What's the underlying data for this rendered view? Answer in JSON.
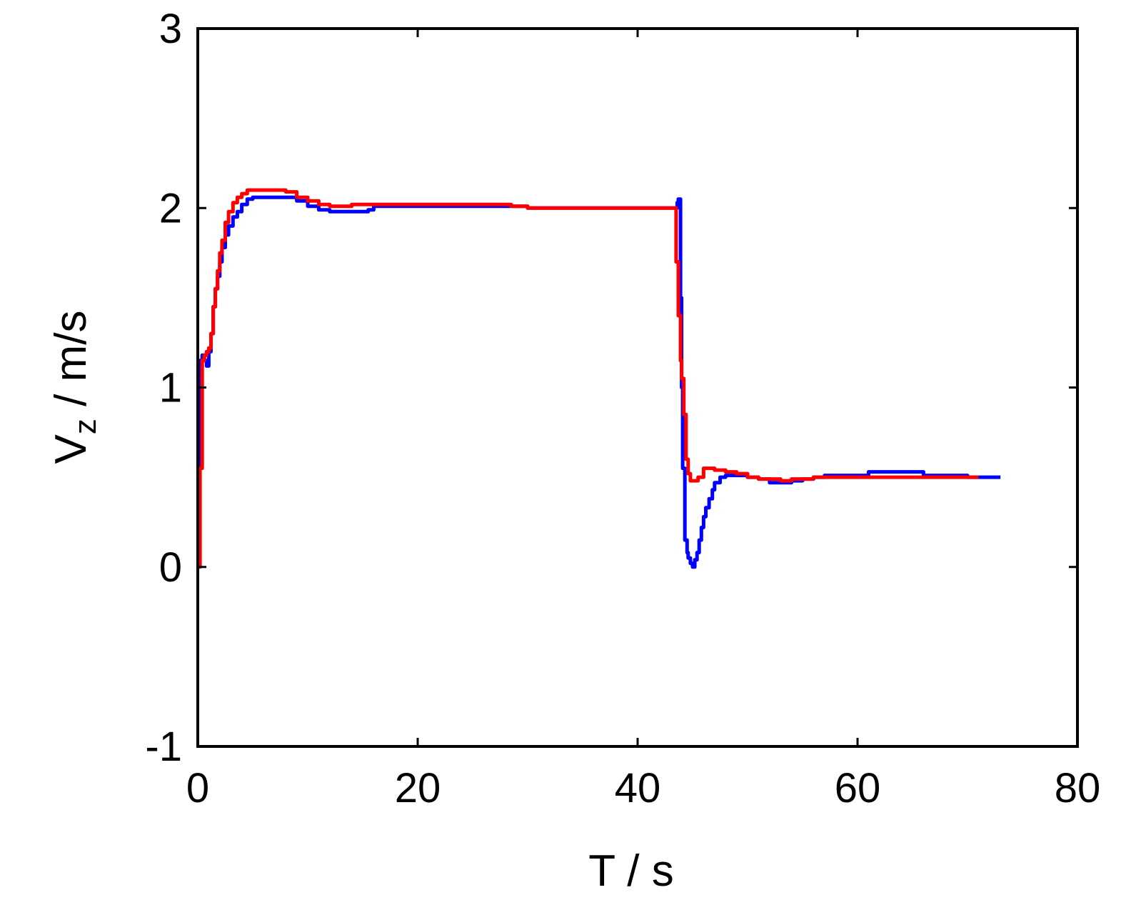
{
  "chart_data": {
    "type": "line",
    "xlabel": "T / s",
    "ylabel": {
      "main": "V",
      "subscript": "z",
      "unit": " / m/s"
    },
    "xlim": [
      0,
      80
    ],
    "ylim": [
      -1,
      3
    ],
    "xticks": [
      0,
      20,
      40,
      60,
      80
    ],
    "yticks": [
      -1,
      0,
      1,
      2,
      3
    ],
    "xtick_labels": [
      "0",
      "20",
      "40",
      "60",
      "80"
    ],
    "ytick_labels": [
      "-1",
      "0",
      "1",
      "2",
      "3"
    ],
    "grid": false,
    "series": [
      {
        "color": "#0000ff",
        "x": [
          0,
          0.2,
          0.4,
          0.6,
          0.8,
          1.0,
          1.2,
          1.4,
          1.6,
          1.8,
          2.0,
          2.2,
          2.5,
          2.8,
          3.2,
          3.6,
          4.0,
          4.5,
          5.0,
          6.0,
          8.0,
          9.0,
          10.0,
          11.0,
          12.0,
          14.0,
          15.0,
          15.5,
          16.0,
          20.0,
          25.0,
          28.5,
          30.0,
          35.0,
          40.0,
          43.3,
          43.6,
          43.7,
          43.9,
          44.0,
          44.1,
          44.3,
          44.5,
          44.6,
          44.8,
          45.0,
          45.2,
          45.4,
          45.6,
          45.8,
          46.0,
          46.2,
          46.5,
          46.8,
          47.0,
          47.5,
          48.0,
          49.0,
          50.0,
          51.0,
          52.0,
          53.0,
          54.0,
          55.0,
          56.0,
          57.0,
          60.0,
          61.0,
          63.0,
          65.0,
          66.0,
          70.0,
          73.0
        ],
        "y": [
          0.55,
          1.15,
          1.18,
          1.15,
          1.12,
          1.2,
          1.3,
          1.45,
          1.55,
          1.62,
          1.7,
          1.78,
          1.85,
          1.9,
          1.95,
          1.98,
          2.02,
          2.05,
          2.06,
          2.06,
          2.06,
          2.04,
          2.01,
          1.99,
          1.98,
          1.98,
          1.98,
          1.99,
          2.01,
          2.01,
          2.01,
          2.01,
          2.0,
          2.0,
          2.0,
          2.0,
          2.03,
          2.05,
          1.5,
          1.0,
          0.55,
          0.15,
          0.08,
          0.05,
          0.02,
          0.0,
          0.04,
          0.08,
          0.15,
          0.22,
          0.28,
          0.33,
          0.38,
          0.43,
          0.47,
          0.5,
          0.51,
          0.51,
          0.5,
          0.49,
          0.47,
          0.47,
          0.48,
          0.49,
          0.5,
          0.51,
          0.51,
          0.53,
          0.53,
          0.53,
          0.51,
          0.5,
          0.5
        ]
      },
      {
        "color": "#ff0000",
        "x": [
          0,
          0.2,
          0.4,
          0.6,
          0.8,
          1.0,
          1.2,
          1.4,
          1.6,
          1.8,
          2.0,
          2.2,
          2.5,
          2.8,
          3.2,
          3.6,
          4.0,
          4.5,
          5.0,
          6.0,
          7.0,
          8.0,
          9.0,
          10.0,
          11.0,
          12.0,
          13.0,
          13.5,
          14.0,
          20.0,
          25.0,
          28.0,
          28.5,
          30.0,
          35.0,
          40.0,
          43.3,
          43.5,
          43.7,
          43.9,
          44.0,
          44.2,
          44.4,
          44.6,
          44.8,
          45.0,
          45.5,
          46.0,
          46.5,
          47.0,
          48.0,
          49.0,
          50.0,
          51.0,
          52.0,
          53.0,
          54.0,
          55.0,
          56.0,
          60.0,
          65.0,
          70.0,
          71.0
        ],
        "y": [
          0.0,
          0.55,
          1.15,
          1.18,
          1.2,
          1.22,
          1.3,
          1.45,
          1.55,
          1.65,
          1.75,
          1.82,
          1.92,
          1.98,
          2.03,
          2.06,
          2.08,
          2.1,
          2.1,
          2.1,
          2.1,
          2.09,
          2.06,
          2.04,
          2.02,
          2.01,
          2.01,
          2.01,
          2.02,
          2.02,
          2.02,
          2.02,
          2.01,
          2.0,
          2.0,
          2.0,
          2.0,
          1.7,
          1.4,
          1.15,
          1.05,
          0.85,
          0.6,
          0.52,
          0.48,
          0.48,
          0.5,
          0.55,
          0.55,
          0.54,
          0.53,
          0.52,
          0.5,
          0.49,
          0.49,
          0.48,
          0.49,
          0.49,
          0.5,
          0.5,
          0.5,
          0.5,
          0.5
        ]
      }
    ]
  }
}
